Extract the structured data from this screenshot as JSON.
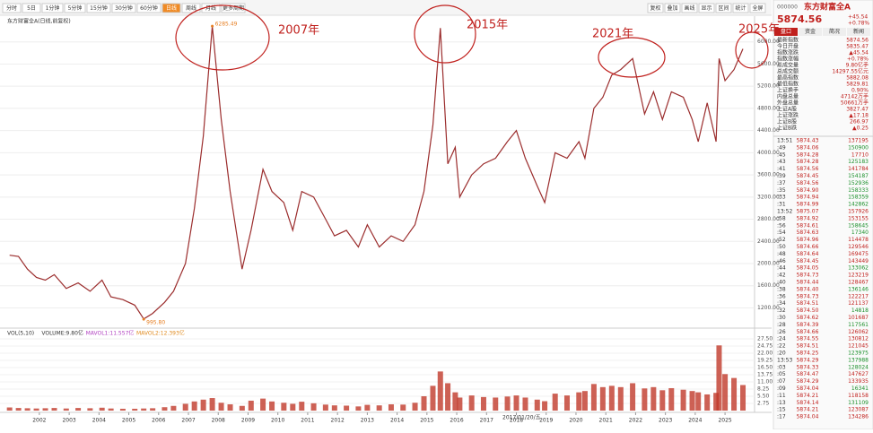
{
  "toolbar": {
    "periods": [
      "分时",
      "5日",
      "1分钟",
      "5分钟",
      "15分钟",
      "30分钟",
      "60分钟",
      "日线",
      "周线",
      "月线",
      "更多周期"
    ],
    "active": 7,
    "tools": [
      "复权",
      "叠加",
      "画线",
      "显示",
      "区间",
      "统计",
      "全屏"
    ]
  },
  "chart_data": {
    "type": "line",
    "title": "东方财富全A(日线,前复权)",
    "x": [
      2001.0,
      2001.3,
      2001.6,
      2001.9,
      2002.2,
      2002.5,
      2002.9,
      2003.3,
      2003.7,
      2004.1,
      2004.4,
      2004.8,
      2005.2,
      2005.5,
      2005.8,
      2006.2,
      2006.5,
      2006.9,
      2007.2,
      2007.5,
      2007.8,
      2008.1,
      2008.4,
      2008.8,
      2009.1,
      2009.5,
      2009.8,
      2010.2,
      2010.5,
      2010.8,
      2011.2,
      2011.6,
      2011.9,
      2012.3,
      2012.7,
      2013.0,
      2013.4,
      2013.8,
      2014.2,
      2014.6,
      2014.9,
      2015.2,
      2015.45,
      2015.7,
      2015.95,
      2016.1,
      2016.5,
      2016.9,
      2017.3,
      2017.7,
      2018.0,
      2018.3,
      2018.7,
      2018.95,
      2019.3,
      2019.7,
      2020.1,
      2020.3,
      2020.6,
      2020.9,
      2021.2,
      2021.5,
      2021.9,
      2022.3,
      2022.6,
      2022.9,
      2023.2,
      2023.6,
      2023.9,
      2024.1,
      2024.4,
      2024.7,
      2024.8,
      2025.0,
      2025.3,
      2025.6
    ],
    "xlim": [
      2000.95,
      2025.9
    ],
    "xticks": [
      2002,
      2003,
      2004,
      2005,
      2006,
      2007,
      2008,
      2009,
      2010,
      2011,
      2012,
      2013,
      2014,
      2015,
      2016,
      2017,
      2018,
      2019,
      2020,
      2021,
      2022,
      2023,
      2024,
      2025
    ],
    "ylim": [
      900,
      6400
    ],
    "yticks": [
      {
        "value": 1200,
        "label": "1200.00"
      },
      {
        "value": 1600,
        "label": "1600.00"
      },
      {
        "value": 2000,
        "label": "2000.00"
      },
      {
        "value": 2400,
        "label": "2400.00"
      },
      {
        "value": 2800,
        "label": "2800.00"
      },
      {
        "value": 3200,
        "label": "3200.00"
      },
      {
        "value": 3600,
        "label": "3600.00"
      },
      {
        "value": 4000,
        "label": "4000.00"
      },
      {
        "value": 4400,
        "label": "4400.00"
      },
      {
        "value": 4800,
        "label": "4800.00"
      },
      {
        "value": 5200,
        "label": "5200.00"
      },
      {
        "value": 5600,
        "label": "5600.00"
      },
      {
        "value": 6000,
        "label": "6000.00"
      }
    ],
    "grid": true,
    "series": [
      {
        "color": "#9b2d2d",
        "values": [
          2150,
          2130,
          1900,
          1750,
          1700,
          1800,
          1550,
          1650,
          1500,
          1700,
          1400,
          1350,
          1250,
          1000,
          1100,
          1300,
          1500,
          2000,
          3000,
          4300,
          6285,
          4600,
          3300,
          1900,
          2600,
          3700,
          3300,
          3100,
          2600,
          3300,
          3200,
          2800,
          2500,
          2600,
          2300,
          2700,
          2300,
          2500,
          2400,
          2700,
          3300,
          4500,
          6250,
          3800,
          4100,
          3200,
          3600,
          3800,
          3900,
          4200,
          4400,
          3900,
          3400,
          3100,
          4000,
          3900,
          4200,
          3900,
          4800,
          5000,
          5400,
          5500,
          5700,
          4700,
          5100,
          4600,
          5100,
          5000,
          4600,
          4200,
          4900,
          4200,
          5700,
          5300,
          5500,
          5874.56
        ]
      }
    ],
    "price_labels": [
      {
        "x": 2007.8,
        "value": 6285.49,
        "label": "6285.49"
      },
      {
        "x": 2005.5,
        "value": 995.8,
        "label": "995.80"
      }
    ],
    "annotations": [
      "2007年",
      "2015年",
      "2021年",
      "2025年"
    ],
    "annotation_color": "#c0201d",
    "crosshair_date": "2017/01/20/五",
    "volume": {
      "legend": [
        {
          "text": "VOL(5,10)",
          "color": "#333333"
        },
        {
          "text": "VOLUME:9.80亿",
          "color": "#333333"
        },
        {
          "text": "MAVOL1:11.557亿",
          "color": "#b03fc0"
        },
        {
          "text": "MAVOL2:12.393亿",
          "color": "#e08a1e"
        }
      ],
      "ylim": [
        0,
        27.5
      ],
      "yticks": [
        {
          "value": 2.75,
          "label": "2.75"
        },
        {
          "value": 5.5,
          "label": "5.50"
        },
        {
          "value": 8.25,
          "label": "8.25"
        },
        {
          "value": 11,
          "label": "11.00"
        },
        {
          "value": 13.75,
          "label": "13.75"
        },
        {
          "value": 16.5,
          "label": "16.50"
        },
        {
          "value": 19.25,
          "label": "19.25"
        },
        {
          "value": 22,
          "label": "22.00"
        },
        {
          "value": 24.75,
          "label": "24.75"
        },
        {
          "value": 27.5,
          "label": "27.50"
        }
      ],
      "color": "#c0392b",
      "values": [
        1.2,
        1.0,
        0.9,
        0.8,
        0.9,
        1.0,
        0.8,
        1.0,
        0.9,
        1.1,
        0.8,
        0.7,
        0.7,
        0.8,
        0.9,
        1.3,
        1.8,
        2.6,
        3.5,
        4.2,
        4.8,
        3.0,
        2.4,
        1.8,
        3.8,
        4.6,
        3.5,
        3.0,
        2.6,
        3.4,
        2.8,
        2.3,
        2.0,
        1.9,
        1.6,
        2.2,
        2.0,
        2.4,
        2.3,
        3.0,
        5.5,
        9.5,
        15.0,
        10.5,
        7.0,
        5.0,
        5.8,
        5.2,
        5.0,
        5.4,
        5.8,
        5.0,
        4.2,
        3.6,
        6.5,
        5.8,
        7.0,
        7.5,
        10.2,
        9.0,
        9.5,
        9.0,
        10.5,
        8.5,
        9.0,
        7.8,
        8.6,
        8.0,
        7.5,
        7.0,
        6.2,
        6.8,
        25.0,
        14.0,
        12.5,
        9.8
      ]
    }
  },
  "panel": {
    "code": "000000",
    "name": "东方财富全A",
    "price": "5874.56",
    "change": "+45.54",
    "change_pct": "+0.78%",
    "tabs": [
      "盘口",
      "资金",
      "简况",
      "新闻"
    ],
    "stats": [
      [
        "最新指数",
        "5874.56"
      ],
      [
        "今日开盘",
        "5835.47"
      ],
      [
        "指数涨跌",
        "▲45.54"
      ],
      [
        "指数涨幅",
        "+0.78%"
      ],
      [
        "总成交量",
        "9.80亿手"
      ],
      [
        "总成交额",
        "14297.55亿元"
      ],
      [
        "最高指数",
        "5882.08"
      ],
      [
        "最低指数",
        "5829.81"
      ],
      [
        "上证换手",
        "0.90%"
      ],
      [
        "内盘总量",
        "47142万手"
      ],
      [
        "外盘总量",
        "50661万手"
      ],
      [
        "上证A股",
        "3827.47"
      ],
      [
        "上证涨跌",
        "▲17.18"
      ],
      [
        "上证B股",
        "266.97"
      ],
      [
        "上证B跌",
        "▲0.25"
      ]
    ],
    "ticks": [
      [
        "13:51",
        "5874.43",
        "137195"
      ],
      [
        ":49",
        "5874.06",
        "150900"
      ],
      [
        ":45",
        "5874.28",
        "17710"
      ],
      [
        ":43",
        "5874.28",
        "125183"
      ],
      [
        ":41",
        "5874.56",
        "141784"
      ],
      [
        ":39",
        "5874.45",
        "154187"
      ],
      [
        ":37",
        "5874.56",
        "152936"
      ],
      [
        ":35",
        "5874.90",
        "158333"
      ],
      [
        ":33",
        "5874.94",
        "158359"
      ],
      [
        ":31",
        "5874.99",
        "142862"
      ],
      [
        "13:52",
        "5875.07",
        "157926"
      ],
      [
        ":58",
        "5874.92",
        "153155"
      ],
      [
        ":56",
        "5874.61",
        "158645"
      ],
      [
        ":54",
        "5874.63",
        "17340"
      ],
      [
        ":52",
        "5874.96",
        "114478"
      ],
      [
        ":50",
        "5874.66",
        "129546"
      ],
      [
        ":48",
        "5874.64",
        "169475"
      ],
      [
        ":46",
        "5874.45",
        "143449"
      ],
      [
        ":44",
        "5874.05",
        "133062"
      ],
      [
        ":42",
        "5874.73",
        "123219"
      ],
      [
        ":40",
        "5874.44",
        "128467"
      ],
      [
        ":38",
        "5874.40",
        "136146"
      ],
      [
        ":36",
        "5874.73",
        "122217"
      ],
      [
        ":34",
        "5874.51",
        "121137"
      ],
      [
        ":32",
        "5874.50",
        "14818"
      ],
      [
        ":30",
        "5874.62",
        "101687"
      ],
      [
        ":28",
        "5874.39",
        "117561"
      ],
      [
        ":26",
        "5874.66",
        "126062"
      ],
      [
        ":24",
        "5874.55",
        "130812"
      ],
      [
        ":22",
        "5874.51",
        "121045"
      ],
      [
        ":20",
        "5874.25",
        "123975"
      ],
      [
        "13:53",
        "5874.29",
        "137988"
      ],
      [
        ":03",
        "5874.33",
        "128024"
      ],
      [
        ":05",
        "5874.47",
        "147627"
      ],
      [
        ":07",
        "5874.29",
        "133935"
      ],
      [
        ":09",
        "5874.04",
        "16341"
      ],
      [
        ":11",
        "5874.21",
        "118158"
      ],
      [
        ":13",
        "5874.14",
        "131109"
      ],
      [
        ":15",
        "5874.21",
        "123087"
      ],
      [
        ":17",
        "5874.04",
        "134286"
      ]
    ]
  }
}
